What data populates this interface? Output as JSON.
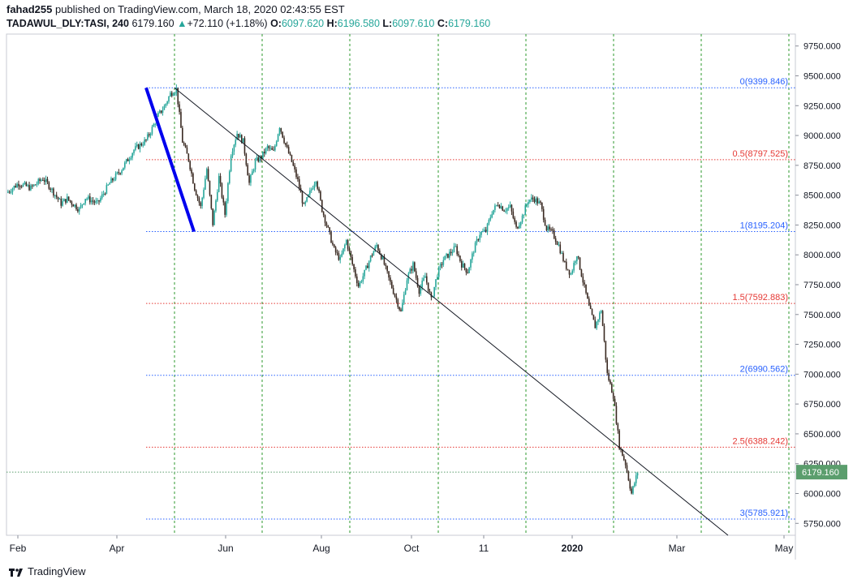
{
  "header": {
    "user": "fahad255",
    "published_text": " published on TradingView.com, March 18, 2020 02:43:55 EST",
    "symbol": "TADAWUL_DLY:TASI, 240",
    "last": "6179.160",
    "change_arrow": "▲",
    "change": "+72.110 (+1.18%)",
    "o_label": "O:",
    "o_value": "6097.620",
    "h_label": "H:",
    "h_value": "6196.580",
    "l_label": "L:",
    "l_value": "6097.610",
    "c_label": "C:",
    "c_value": "6179.160"
  },
  "footer": {
    "brand": "TradingView"
  },
  "colors": {
    "up": "#26a69a",
    "price_tag": "#5b9e6d",
    "fib_blue": "#2962ff",
    "fib_red": "#e53935",
    "trend_line": "#131722",
    "impulse": "#0000ee",
    "grid_v": "#2e9a2e"
  },
  "chart_data": {
    "type": "candlestick",
    "x_ticks": [
      "Feb",
      "Apr",
      "Jun",
      "Aug",
      "Oct",
      "11",
      "2020",
      "Mar",
      "May"
    ],
    "y_ticks": [
      "9750.000",
      "9500.000",
      "9250.000",
      "9000.000",
      "8750.000",
      "8500.000",
      "8250.000",
      "8000.000",
      "7750.000",
      "7500.000",
      "7250.000",
      "7000.000",
      "6750.000",
      "6500.000",
      "6250.000",
      "6000.000",
      "5750.000"
    ],
    "ylim": [
      5650,
      9850
    ],
    "current_price": "6179.160",
    "current_price_value": 6179.16,
    "fib_levels": [
      {
        "label": "0(9399.846)",
        "value": 9399.846,
        "color": "blue"
      },
      {
        "label": "0.5(8797.525)",
        "value": 8797.525,
        "color": "red"
      },
      {
        "label": "1(8195.204)",
        "value": 8195.204,
        "color": "blue"
      },
      {
        "label": "1.5(7592.883)",
        "value": 7592.883,
        "color": "red"
      },
      {
        "label": "2(6990.562)",
        "value": 6990.562,
        "color": "blue"
      },
      {
        "label": "2.5(6388.242)",
        "value": 6388.242,
        "color": "red"
      },
      {
        "label": "3(5785.921)",
        "value": 5785.921,
        "color": "blue"
      }
    ],
    "price_path": [
      [
        0,
        8520
      ],
      [
        2,
        8600
      ],
      [
        4,
        8560
      ],
      [
        6,
        8640
      ],
      [
        7,
        8580
      ],
      [
        9,
        8430
      ],
      [
        10,
        8470
      ],
      [
        12,
        8380
      ],
      [
        13,
        8480
      ],
      [
        15,
        8430
      ],
      [
        17,
        8600
      ],
      [
        19,
        8720
      ],
      [
        21,
        8880
      ],
      [
        23,
        8960
      ],
      [
        24,
        9060
      ],
      [
        25,
        9170
      ],
      [
        26,
        9240
      ],
      [
        27,
        9350
      ],
      [
        28,
        9390
      ],
      [
        29,
        8950
      ],
      [
        30,
        8800
      ],
      [
        31,
        8560
      ],
      [
        32,
        8400
      ],
      [
        33,
        8720
      ],
      [
        34,
        8260
      ],
      [
        35,
        8650
      ],
      [
        36,
        8340
      ],
      [
        37,
        8850
      ],
      [
        38,
        9020
      ],
      [
        39,
        8950
      ],
      [
        40,
        8600
      ],
      [
        41,
        8780
      ],
      [
        42,
        8820
      ],
      [
        43,
        8900
      ],
      [
        44,
        8860
      ],
      [
        45,
        9080
      ],
      [
        46,
        8920
      ],
      [
        47,
        8780
      ],
      [
        48,
        8620
      ],
      [
        49,
        8400
      ],
      [
        50,
        8520
      ],
      [
        51,
        8640
      ],
      [
        52,
        8380
      ],
      [
        53,
        8210
      ],
      [
        54,
        8040
      ],
      [
        55,
        7960
      ],
      [
        56,
        8120
      ],
      [
        57,
        7920
      ],
      [
        58,
        7740
      ],
      [
        59,
        7850
      ],
      [
        60,
        7980
      ],
      [
        61,
        8080
      ],
      [
        62,
        7960
      ],
      [
        63,
        7800
      ],
      [
        64,
        7660
      ],
      [
        65,
        7520
      ],
      [
        66,
        7800
      ],
      [
        67,
        7920
      ],
      [
        68,
        7700
      ],
      [
        69,
        7820
      ],
      [
        70,
        7620
      ],
      [
        71,
        7840
      ],
      [
        72,
        7960
      ],
      [
        73,
        8010
      ],
      [
        74,
        8060
      ],
      [
        75,
        7920
      ],
      [
        76,
        7860
      ],
      [
        77,
        8040
      ],
      [
        78,
        8180
      ],
      [
        79,
        8200
      ],
      [
        80,
        8360
      ],
      [
        81,
        8430
      ],
      [
        82,
        8380
      ],
      [
        83,
        8400
      ],
      [
        84,
        8220
      ],
      [
        85,
        8320
      ],
      [
        86,
        8460
      ],
      [
        87,
        8470
      ],
      [
        88,
        8420
      ],
      [
        89,
        8220
      ],
      [
        90,
        8180
      ],
      [
        91,
        8080
      ],
      [
        92,
        7920
      ],
      [
        93,
        7840
      ],
      [
        94,
        8010
      ],
      [
        95,
        7780
      ],
      [
        96,
        7560
      ],
      [
        97,
        7400
      ],
      [
        98,
        7540
      ],
      [
        99,
        7000
      ],
      [
        100,
        6820
      ],
      [
        101,
        6400
      ],
      [
        102,
        6250
      ],
      [
        103,
        6000
      ],
      [
        104,
        6179
      ]
    ]
  }
}
